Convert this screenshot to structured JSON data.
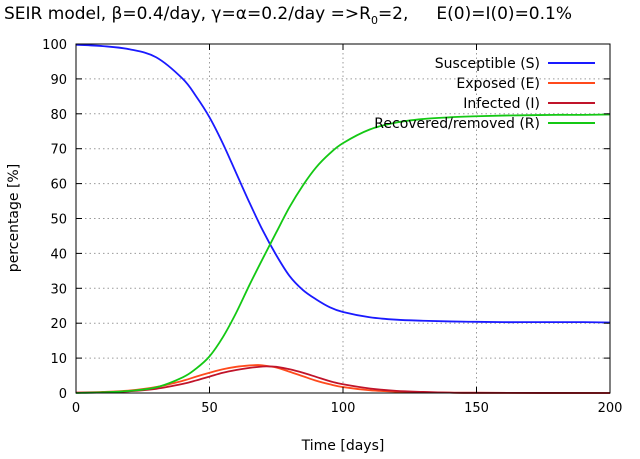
{
  "chart_data": {
    "type": "line",
    "title_parts": {
      "main": "SEIR model, β=0.4/day, γ=α=0.2/day =>R",
      "sub": "0",
      "tail": "=2,",
      "initial": "E(0)=I(0)=0.1%"
    },
    "xlabel": "Time [days]",
    "ylabel": "percentage [%]",
    "xlim": [
      0,
      200
    ],
    "ylim": [
      0,
      100
    ],
    "xticks": [
      "0",
      "50",
      "100",
      "150",
      "200"
    ],
    "yticks": [
      "0",
      "10",
      "20",
      "30",
      "40",
      "50",
      "60",
      "70",
      "80",
      "90",
      "100"
    ],
    "grid": true,
    "legend_position": "top-right",
    "series": [
      {
        "name": "Susceptible (S)",
        "color": "#1a1aff",
        "x": [
          0,
          10,
          20,
          30,
          40,
          45,
          50,
          55,
          60,
          65,
          70,
          75,
          80,
          85,
          90,
          95,
          100,
          110,
          120,
          130,
          140,
          150,
          160,
          170,
          180,
          190,
          200
        ],
        "y": [
          99.8,
          99.4,
          98.5,
          96.2,
          90.0,
          85.0,
          79.0,
          71.5,
          63.0,
          54.5,
          46.5,
          39.5,
          33.5,
          29.5,
          26.8,
          24.6,
          23.2,
          21.7,
          21.0,
          20.7,
          20.5,
          20.4,
          20.3,
          20.3,
          20.3,
          20.3,
          20.2
        ]
      },
      {
        "name": "Exposed (E)",
        "color": "#ff4a1c",
        "x": [
          0,
          10,
          20,
          30,
          40,
          45,
          50,
          55,
          60,
          65,
          68,
          70,
          75,
          80,
          85,
          90,
          95,
          100,
          110,
          120,
          130,
          140,
          150,
          200
        ],
        "y": [
          0.1,
          0.3,
          0.7,
          1.7,
          3.5,
          4.7,
          5.8,
          6.8,
          7.5,
          7.9,
          8.0,
          7.9,
          7.3,
          6.1,
          4.8,
          3.5,
          2.5,
          1.7,
          0.8,
          0.4,
          0.2,
          0.1,
          0.05,
          0.0
        ]
      },
      {
        "name": "Infected (I)",
        "color": "#c0142a",
        "x": [
          0,
          10,
          20,
          30,
          40,
          45,
          50,
          55,
          60,
          65,
          70,
          73,
          75,
          80,
          85,
          90,
          95,
          100,
          110,
          120,
          130,
          140,
          150,
          200
        ],
        "y": [
          0.1,
          0.2,
          0.5,
          1.2,
          2.6,
          3.6,
          4.7,
          5.8,
          6.6,
          7.2,
          7.6,
          7.6,
          7.5,
          6.8,
          5.8,
          4.6,
          3.4,
          2.5,
          1.3,
          0.6,
          0.3,
          0.1,
          0.05,
          0.0
        ]
      },
      {
        "name": "Recovered/removed (R)",
        "color": "#14c814",
        "x": [
          0,
          10,
          20,
          30,
          40,
          45,
          50,
          55,
          60,
          65,
          70,
          75,
          80,
          85,
          90,
          95,
          100,
          110,
          120,
          130,
          140,
          150,
          160,
          170,
          180,
          190,
          200
        ],
        "y": [
          0.0,
          0.2,
          0.6,
          1.6,
          4.5,
          7.0,
          10.5,
          16.0,
          23.0,
          31.0,
          38.6,
          46.0,
          53.3,
          59.5,
          64.7,
          68.6,
          71.6,
          75.5,
          77.5,
          78.5,
          79.0,
          79.3,
          79.5,
          79.6,
          79.7,
          79.7,
          79.8
        ]
      }
    ]
  }
}
